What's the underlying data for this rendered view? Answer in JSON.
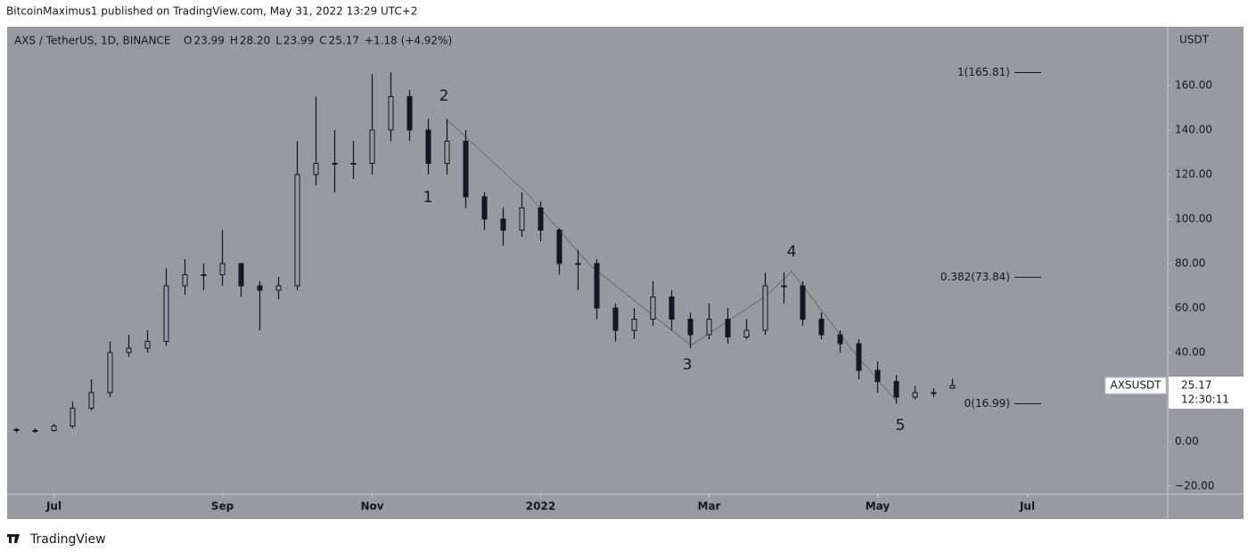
{
  "chart_data": {
    "type": "candlestick",
    "attribution": "BitcoinMaximus1 published on TradingView.com, May 31, 2022 13:29 UTC+2",
    "symbol": "AXS / TetherUS, 1D, BINANCE",
    "legend_fields": [
      {
        "key": "O",
        "value": "23.99"
      },
      {
        "key": "H",
        "value": "28.20"
      },
      {
        "key": "L",
        "value": "23.99"
      },
      {
        "key": "C",
        "value": "25.17"
      }
    ],
    "change": "+1.18 (+4.92%)",
    "y_axis_label": "USDT",
    "ticker": "AXSUSDT",
    "countdown": "12:30:11",
    "brand": "TradingView",
    "color": "#131722",
    "background": "#979aa1",
    "categories": [
      null,
      null,
      "Jul",
      null,
      null,
      null,
      null,
      null,
      null,
      null,
      null,
      "Sep",
      null,
      null,
      null,
      null,
      null,
      null,
      null,
      "Nov",
      null,
      null,
      null,
      null,
      null,
      null,
      null,
      null,
      "2022",
      null,
      null,
      null,
      null,
      null,
      null,
      null,
      null,
      "Mar",
      null,
      null,
      null,
      null,
      null,
      null,
      null,
      null,
      "May",
      null,
      null,
      null,
      null,
      null,
      null,
      null,
      "Jul",
      null,
      null,
      null,
      null,
      null,
      null,
      null
    ],
    "open": [
      5.5,
      5,
      5,
      7,
      15,
      22,
      40,
      42,
      45,
      70,
      75,
      75,
      80,
      70,
      68,
      70,
      120,
      125,
      125,
      125,
      140,
      155,
      140,
      125,
      135,
      110,
      100,
      95,
      105,
      95,
      80,
      80,
      60,
      50,
      55,
      65,
      55,
      48,
      55,
      47,
      50,
      70,
      70,
      55,
      48,
      44,
      32,
      27,
      20,
      22,
      23.99,
      null,
      null,
      null,
      null,
      null,
      null,
      null,
      null,
      null,
      null,
      null
    ],
    "high": [
      6,
      6,
      8,
      18,
      28,
      45,
      48,
      50,
      78,
      82,
      80,
      95,
      78,
      72,
      74,
      135,
      155,
      140,
      135,
      165,
      166,
      158,
      145,
      145,
      140,
      112,
      105,
      112,
      108,
      96,
      86,
      82,
      62,
      60,
      72,
      68,
      58,
      62,
      60,
      55,
      76,
      76,
      72,
      58,
      50,
      46,
      36,
      30,
      25,
      24,
      28.2,
      null,
      null,
      null,
      null,
      null,
      null,
      null,
      null,
      null,
      null,
      null
    ],
    "low": [
      4,
      4,
      4.5,
      6,
      14,
      20,
      38,
      40,
      43,
      66,
      68,
      70,
      65,
      50,
      64,
      68,
      115,
      112,
      118,
      120,
      135,
      135,
      120,
      120,
      105,
      95,
      88,
      92,
      90,
      75,
      68,
      55,
      45,
      46,
      52,
      50,
      42,
      46,
      44,
      46,
      48,
      62,
      52,
      46,
      40,
      28,
      22,
      17,
      19,
      20,
      23.99,
      null,
      null,
      null,
      null,
      null,
      null,
      null,
      null,
      null,
      null,
      null
    ],
    "close": [
      5,
      5,
      7,
      15,
      22,
      40,
      42,
      45,
      70,
      75,
      75,
      80,
      70,
      68,
      70,
      120,
      125,
      125,
      125,
      140,
      155,
      140,
      125,
      135,
      110,
      100,
      95,
      105,
      95,
      80,
      80,
      60,
      50,
      55,
      65,
      55,
      48,
      55,
      47,
      50,
      70,
      70,
      55,
      48,
      44,
      32,
      27,
      20,
      22,
      22,
      25.17,
      null,
      null,
      null,
      null,
      null,
      null,
      null,
      null,
      null,
      null,
      null
    ],
    "ylim": [
      -23.6,
      186.4
    ],
    "yticks": [
      {
        "value": 160,
        "label": "160.00"
      },
      {
        "value": 140,
        "label": "140.00"
      },
      {
        "value": 120,
        "label": "120.00"
      },
      {
        "value": 100,
        "label": "100.00"
      },
      {
        "value": 80,
        "label": "80.00"
      },
      {
        "value": 60,
        "label": "60.00"
      },
      {
        "value": 40,
        "label": "40.00"
      },
      {
        "value": 0,
        "label": "0.00"
      },
      {
        "value": -20,
        "label": "−20.00"
      }
    ],
    "fib_levels": [
      {
        "value": 165.81,
        "label": "1(165.81)"
      },
      {
        "value": 73.84,
        "label": "0.382(73.84)"
      },
      {
        "value": 16.99,
        "label": "0(16.99)"
      }
    ],
    "wave_labels": [
      "1",
      "2",
      "3",
      "4",
      "5"
    ]
  }
}
